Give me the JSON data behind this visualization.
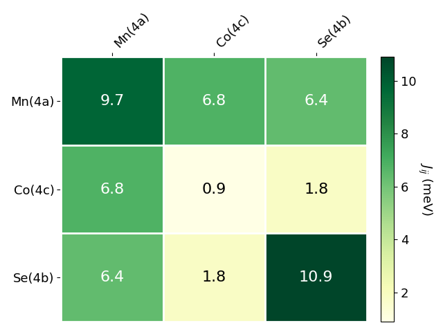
{
  "matrix": [
    [
      9.7,
      6.8,
      6.4
    ],
    [
      6.8,
      0.9,
      1.8
    ],
    [
      6.4,
      1.8,
      10.9
    ]
  ],
  "row_labels": [
    "Mn(4a)",
    "Co(4c)",
    "Se(4b)"
  ],
  "col_labels": [
    "Mn(4a)",
    "Co(4c)",
    "Se(4b)"
  ],
  "vmin": 0.9,
  "vmax": 10.9,
  "colorbar_ticks": [
    2,
    4,
    6,
    8,
    10
  ],
  "colorbar_label": "$J_{ij}$ (meV)",
  "cmap": "YlGn",
  "white_text_threshold": 4.0,
  "cell_fontsize": 16,
  "label_fontsize": 13,
  "colorbar_fontsize": 13,
  "figsize": [
    6.4,
    4.8
  ],
  "dpi": 100
}
